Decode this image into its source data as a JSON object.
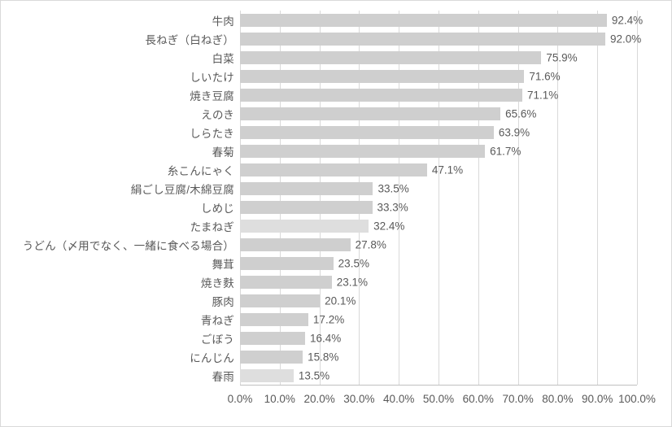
{
  "chart_data": {
    "type": "bar",
    "orientation": "horizontal",
    "title": "",
    "xlabel": "",
    "ylabel": "",
    "xlim": [
      0,
      100
    ],
    "grid": true,
    "legend": false,
    "categories": [
      "牛肉",
      "長ねぎ（白ねぎ）",
      "白菜",
      "しいたけ",
      "焼き豆腐",
      "えのき",
      "しらたき",
      "春菊",
      "糸こんにゃく",
      "絹ごし豆腐/木綿豆腐",
      "しめじ",
      "たまねぎ",
      "うどん（〆用でなく、一緒に食べる場合）",
      "舞茸",
      "焼き麩",
      "豚肉",
      "青ねぎ",
      "ごぼう",
      "にんじん",
      "春雨"
    ],
    "values": [
      92.4,
      92.0,
      75.9,
      71.6,
      71.1,
      65.6,
      63.9,
      61.7,
      47.1,
      33.5,
      33.3,
      32.4,
      27.8,
      23.5,
      23.1,
      20.1,
      17.2,
      16.4,
      15.8,
      13.5
    ],
    "value_labels": [
      "92.4%",
      "92.0%",
      "75.9%",
      "71.6%",
      "71.1%",
      "65.6%",
      "63.9%",
      "61.7%",
      "47.1%",
      "33.5%",
      "33.3%",
      "32.4%",
      "27.8%",
      "23.5%",
      "23.1%",
      "20.1%",
      "17.2%",
      "16.4%",
      "15.8%",
      "13.5%"
    ],
    "light_bar_indices": [
      11,
      19
    ],
    "x_ticks": [
      "0.0%",
      "10.0%",
      "20.0%",
      "30.0%",
      "40.0%",
      "50.0%",
      "60.0%",
      "70.0%",
      "80.0%",
      "90.0%",
      "100.0%"
    ],
    "x_tick_values": [
      0,
      10,
      20,
      30,
      40,
      50,
      60,
      70,
      80,
      90,
      100
    ]
  },
  "colors": {
    "bar": "#cfcfcf",
    "bar_light": "#dedede",
    "gridline": "#d9d9d9",
    "axis_line": "#c0c0c0",
    "text": "#595959",
    "frame_border": "#d9d9d9",
    "background": "#ffffff"
  }
}
